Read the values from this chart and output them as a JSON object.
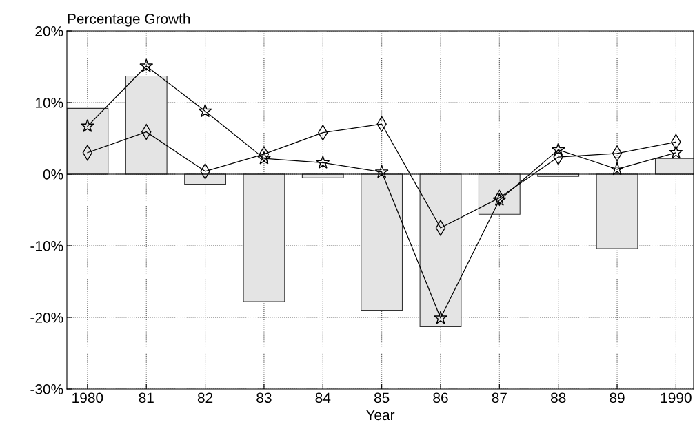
{
  "chart_data": {
    "type": "bar",
    "ylabel": "Percentage Growth",
    "xlabel": "Year",
    "categories": [
      "1980",
      "81",
      "82",
      "83",
      "84",
      "85",
      "86",
      "87",
      "88",
      "89",
      "1990"
    ],
    "series": [
      {
        "color": "#e4e4e4",
        "values": [
          9.2,
          13.7,
          -1.4,
          -17.8,
          -0.5,
          -19.0,
          -21.3,
          -5.6,
          -0.3,
          -10.4,
          2.2
        ]
      },
      {
        "type": "line",
        "color": "#000000",
        "marker": "star",
        "values": [
          6.7,
          15.1,
          8.8,
          2.2,
          1.6,
          0.3,
          -20.1,
          -3.6,
          3.4,
          0.7,
          3.0
        ]
      },
      {
        "type": "line",
        "color": "#000000",
        "marker": "diamond",
        "values": [
          3.0,
          5.9,
          0.4,
          2.8,
          5.8,
          7.0,
          -7.5,
          -3.3,
          2.4,
          2.9,
          4.5
        ]
      }
    ],
    "ylim": [
      -30,
      20
    ],
    "yticks": [
      {
        "value": -30,
        "label": "-30%"
      },
      {
        "value": -20,
        "label": "-20%"
      },
      {
        "value": -10,
        "label": "-10%"
      },
      {
        "value": 0,
        "label": "0%"
      },
      {
        "value": 10,
        "label": "10%"
      },
      {
        "value": 20,
        "label": "20%"
      }
    ],
    "grid": true,
    "line_style": "solid"
  }
}
